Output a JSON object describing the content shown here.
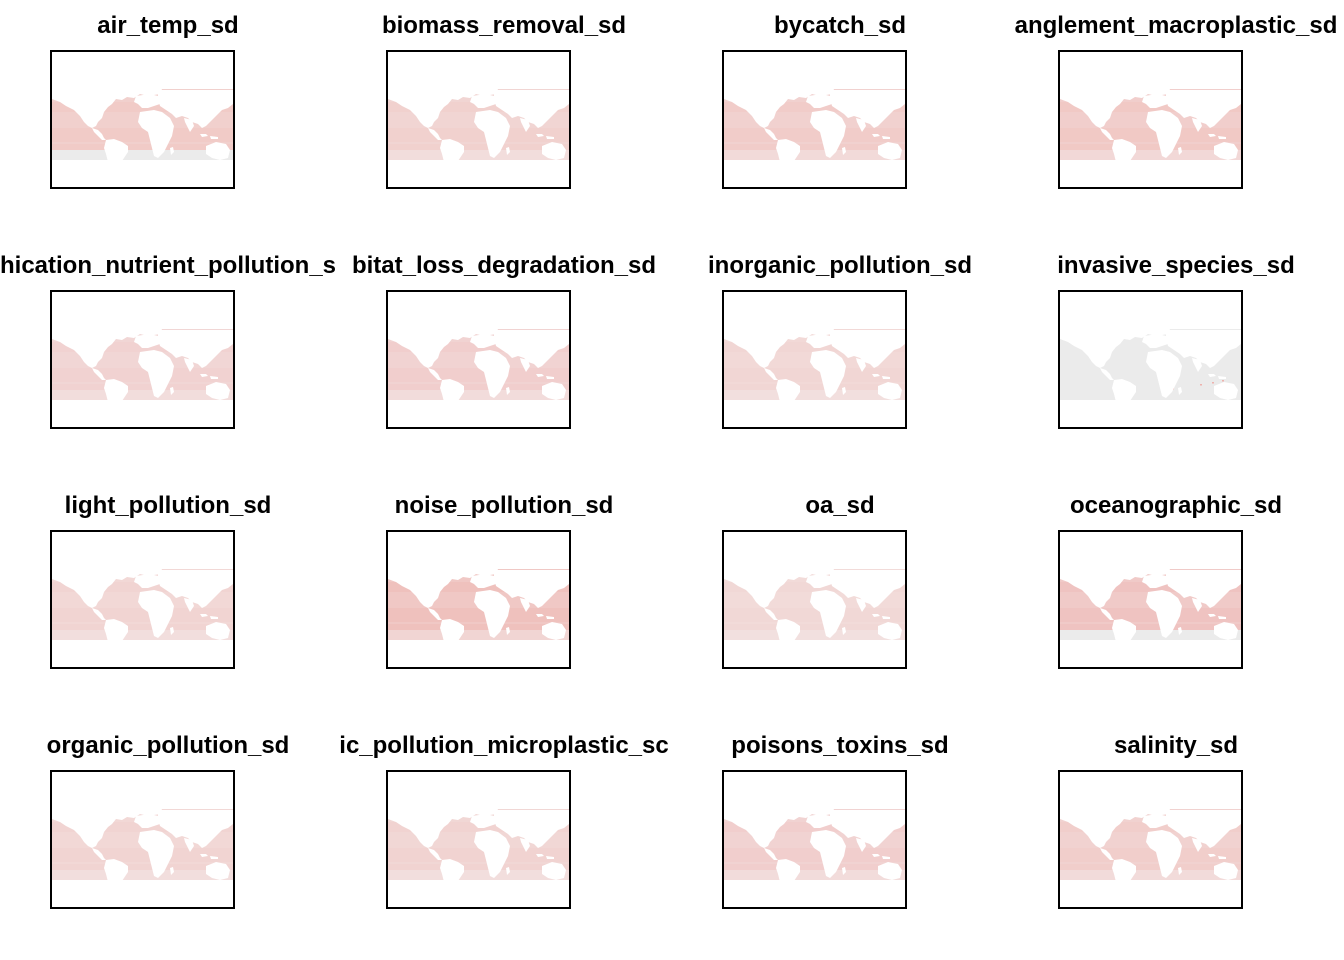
{
  "colors": {
    "background": "#ffffff",
    "frame": "#000000",
    "no_data": "#ebebeb",
    "low": "#f3e8e8",
    "high": "#eeb2ad",
    "land": "#ffffff"
  },
  "panels": [
    {
      "title": "air_temp_sd",
      "intensity": 0.45,
      "south_grey": true
    },
    {
      "title": "biomass_removal_sd",
      "intensity": 0.35,
      "south_grey": false
    },
    {
      "title": "bycatch_sd",
      "intensity": 0.42,
      "south_grey": false
    },
    {
      "title": "anglement_macroplastic_sd",
      "intensity": 0.48,
      "south_grey": false
    },
    {
      "title": "hication_nutrient_pollution_s",
      "intensity": 0.33,
      "south_grey": false
    },
    {
      "title": "bitat_loss_degradation_sd",
      "intensity": 0.38,
      "south_grey": false
    },
    {
      "title": "inorganic_pollution_sd",
      "intensity": 0.28,
      "south_grey": false
    },
    {
      "title": "invasive_species_sd",
      "intensity": 0.04,
      "south_grey": false
    },
    {
      "title": "light_pollution_sd",
      "intensity": 0.3,
      "south_grey": false
    },
    {
      "title": "noise_pollution_sd",
      "intensity": 0.6,
      "south_grey": false
    },
    {
      "title": "oa_sd",
      "intensity": 0.25,
      "south_grey": false
    },
    {
      "title": "oceanographic_sd",
      "intensity": 0.55,
      "south_grey": true
    },
    {
      "title": "organic_pollution_sd",
      "intensity": 0.3,
      "south_grey": false
    },
    {
      "title": "ic_pollution_microplastic_sc",
      "intensity": 0.32,
      "south_grey": false
    },
    {
      "title": "poisons_toxins_sd",
      "intensity": 0.38,
      "south_grey": false
    },
    {
      "title": "salinity_sd",
      "intensity": 0.4,
      "south_grey": false
    }
  ]
}
